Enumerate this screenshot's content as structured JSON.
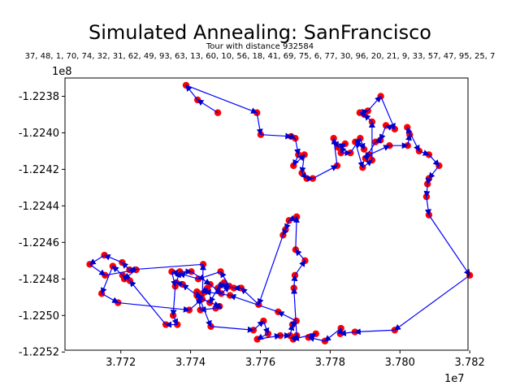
{
  "chart_data": {
    "type": "line",
    "title": "Simulated Annealing: SanFrancisco",
    "subtitle_line1": "Tour with distance 932584",
    "subtitle_line2": "37, 48, 1, 70, 74, 32, 31, 62, 49, 93, 63, 13, 60, 10, 56, 18, 41, 69, 75, 6, 77, 30, 96, 20, 21, 9, 33, 57, 47, 95, 25, 7",
    "x_offset_label": "1e7",
    "y_offset_label": "1e8",
    "xlim": [
      37.704,
      37.8195
    ],
    "ylim": [
      -1.22519,
      -1.2237
    ],
    "xticks": [
      37.72,
      37.74,
      37.76,
      37.78,
      37.8,
      37.82
    ],
    "xtick_labels": [
      "3.772",
      "3.774",
      "3.776",
      "3.778",
      "3.780",
      "3.782"
    ],
    "yticks": [
      -1.2252,
      -1.225,
      -1.2248,
      -1.2246,
      -1.2244,
      -1.2242,
      -1.224,
      -1.2238
    ],
    "ytick_labels": [
      "-1.2252",
      "-1.2250",
      "-1.2248",
      "-1.2246",
      "-1.2244",
      "-1.2242",
      "-1.2240",
      "-1.2238"
    ],
    "colors": {
      "line": "#0000ff",
      "point": "#ff0000",
      "arrow": "#0000cc"
    },
    "grid": false,
    "series": [
      {
        "x": [
          37.7478,
          37.742,
          37.7387,
          37.759,
          37.7601,
          37.7688,
          37.77,
          37.7709,
          37.7695,
          37.7726,
          37.7719,
          37.7733,
          37.775,
          37.782,
          37.781,
          37.7823,
          37.7843,
          37.7831,
          37.7858,
          37.7886,
          37.7897,
          37.7872,
          37.7893,
          37.792,
          37.792,
          37.7898,
          37.7885,
          37.7908,
          37.7945,
          37.7985,
          37.796,
          37.7944,
          37.793,
          37.7901,
          37.7912,
          37.797,
          37.8022,
          37.8028,
          37.8021,
          37.8055,
          37.8083,
          37.8112,
          37.8083,
          37.8079,
          37.8076,
          37.8083,
          37.82,
          37.7985,
          37.7871,
          37.7829,
          37.7831,
          37.7785,
          37.7738,
          37.7759,
          37.7694,
          37.7704,
          37.7696,
          37.7699,
          37.7728,
          37.7701,
          37.7704,
          37.7682,
          37.7672,
          37.7665,
          37.7595,
          37.7545,
          37.7524,
          37.749,
          37.7496,
          37.7478,
          37.7455,
          37.7418,
          37.7377,
          37.7359,
          37.7369,
          37.7402,
          37.7456,
          37.7488,
          37.7511,
          37.7486,
          37.7422,
          37.7368,
          37.7346,
          37.7356,
          37.735,
          37.7362,
          37.7329,
          37.7226,
          37.7205,
          37.7177,
          37.7145,
          37.7192,
          37.7396,
          37.7433,
          37.7483,
          37.7472,
          37.7428,
          37.7423,
          37.7418,
          37.7458,
          37.758,
          37.7609,
          37.7622,
          37.7591,
          37.7657,
          37.7685,
          37.7692,
          37.7703,
          37.7651,
          37.7513,
          37.7442,
          37.7448,
          37.7434,
          37.7436,
          37.7225,
          37.7204,
          37.7153,
          37.7111,
          37.7155,
          37.7244,
          37.721
        ],
        "y": [
          -1.22389,
          -1.22382,
          -1.22374,
          -1.22389,
          -1.22401,
          -1.22402,
          -1.22403,
          -1.22412,
          -1.22418,
          -1.22412,
          -1.22422,
          -1.22425,
          -1.22425,
          -1.22418,
          -1.22403,
          -1.22408,
          -1.22406,
          -1.22411,
          -1.22411,
          -1.22403,
          -1.22409,
          -1.22405,
          -1.22419,
          -1.22415,
          -1.22394,
          -1.2239,
          -1.22389,
          -1.22388,
          -1.2238,
          -1.22398,
          -1.22396,
          -1.22404,
          -1.22405,
          -1.22414,
          -1.22412,
          -1.22407,
          -1.22407,
          -1.22401,
          -1.22397,
          -1.2241,
          -1.22412,
          -1.22418,
          -1.22425,
          -1.22428,
          -1.22435,
          -1.22445,
          -1.22478,
          -1.22508,
          -1.22509,
          -1.2251,
          -1.22507,
          -1.22514,
          -1.22512,
          -1.2251,
          -1.22513,
          -1.22511,
          -1.22485,
          -1.22478,
          -1.2247,
          -1.22464,
          -1.22446,
          -1.22448,
          -1.22453,
          -1.22456,
          -1.22494,
          -1.22485,
          -1.22485,
          -1.22483,
          -1.22482,
          -1.22485,
          -1.22493,
          -1.22489,
          -1.22483,
          -1.22482,
          -1.22476,
          -1.22476,
          -1.22483,
          -1.22488,
          -1.22484,
          -1.22476,
          -1.2248,
          -1.22477,
          -1.22476,
          -1.22484,
          -1.225,
          -1.22505,
          -1.22505,
          -1.22481,
          -1.22478,
          -1.22473,
          -1.22488,
          -1.22493,
          -1.22497,
          -1.22491,
          -1.22495,
          -1.22496,
          -1.22497,
          -1.2249,
          -1.22487,
          -1.22506,
          -1.22508,
          -1.22503,
          -1.2251,
          -1.22513,
          -1.22511,
          -1.22511,
          -1.22505,
          -1.22503,
          -1.22498,
          -1.22489,
          -1.22487,
          -1.22485,
          -1.22488,
          -1.22472,
          -1.22475,
          -1.22471,
          -1.22467,
          -1.22472,
          -1.22478,
          -1.22475,
          -1.2248
        ]
      }
    ]
  }
}
